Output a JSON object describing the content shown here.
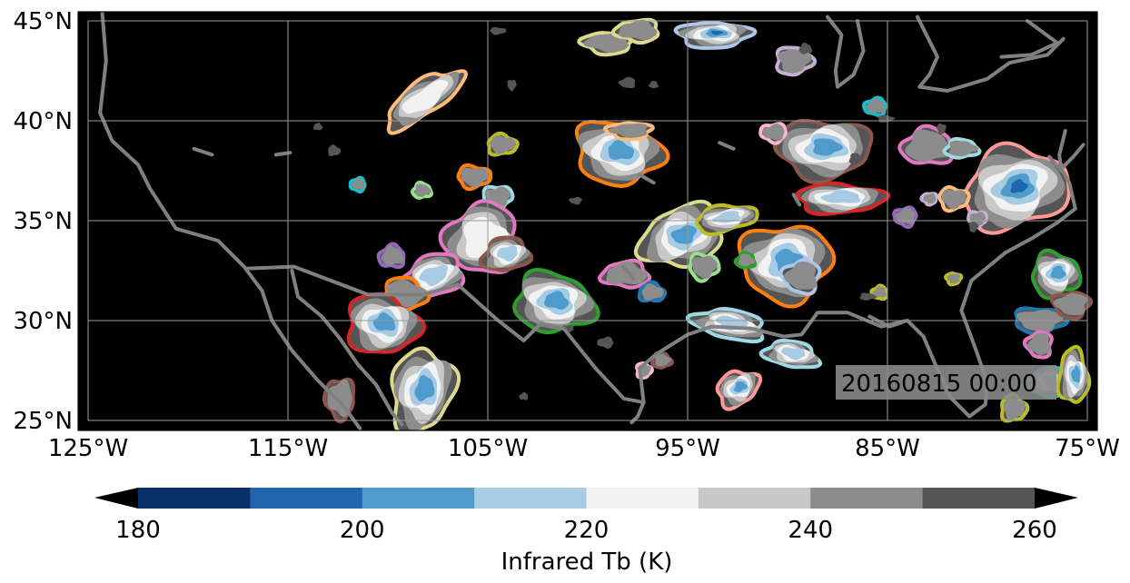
{
  "map": {
    "lon_range": [
      -125,
      -75
    ],
    "lat_range": [
      25,
      45
    ],
    "background_color": "#000000",
    "gridlines": true,
    "lon_ticks": [
      {
        "value": -125,
        "label": "125°W"
      },
      {
        "value": -115,
        "label": "115°W"
      },
      {
        "value": -105,
        "label": "105°W"
      },
      {
        "value": -95,
        "label": "95°W"
      },
      {
        "value": -85,
        "label": "85°W"
      },
      {
        "value": -75,
        "label": "75°W"
      }
    ],
    "lat_ticks": [
      {
        "value": 45,
        "label": "45°N"
      },
      {
        "value": 40,
        "label": "40°N"
      },
      {
        "value": 35,
        "label": "35°N"
      },
      {
        "value": 30,
        "label": "30°N"
      },
      {
        "value": 25,
        "label": "25°N"
      }
    ],
    "timestamp": "20160815 00:00"
  },
  "colorbar": {
    "label": "Infrared Tb (K)",
    "range": [
      180,
      260
    ],
    "extend": "both",
    "ticks": [
      "180",
      "200",
      "220",
      "240",
      "260"
    ],
    "colors": [
      "#08306b",
      "#2166ac",
      "#4f9bcc",
      "#a6cbe3",
      "#f2f2f2",
      "#c8c8c8",
      "#8c8c8c",
      "#555555"
    ],
    "under_color": "#000000",
    "over_color": "#000000"
  },
  "coastline_color": "#808080",
  "storm_outline_colors": [
    "#ff7f0e",
    "#ffbb78",
    "#d62728",
    "#ff9896",
    "#2ca02c",
    "#98df8a",
    "#1f77b4",
    "#aec7e8",
    "#9467bd",
    "#c5b0d5",
    "#8c564b",
    "#e377c2",
    "#f7b6d2",
    "#bcbd22",
    "#dbdb8d",
    "#17becf",
    "#9edae5"
  ]
}
